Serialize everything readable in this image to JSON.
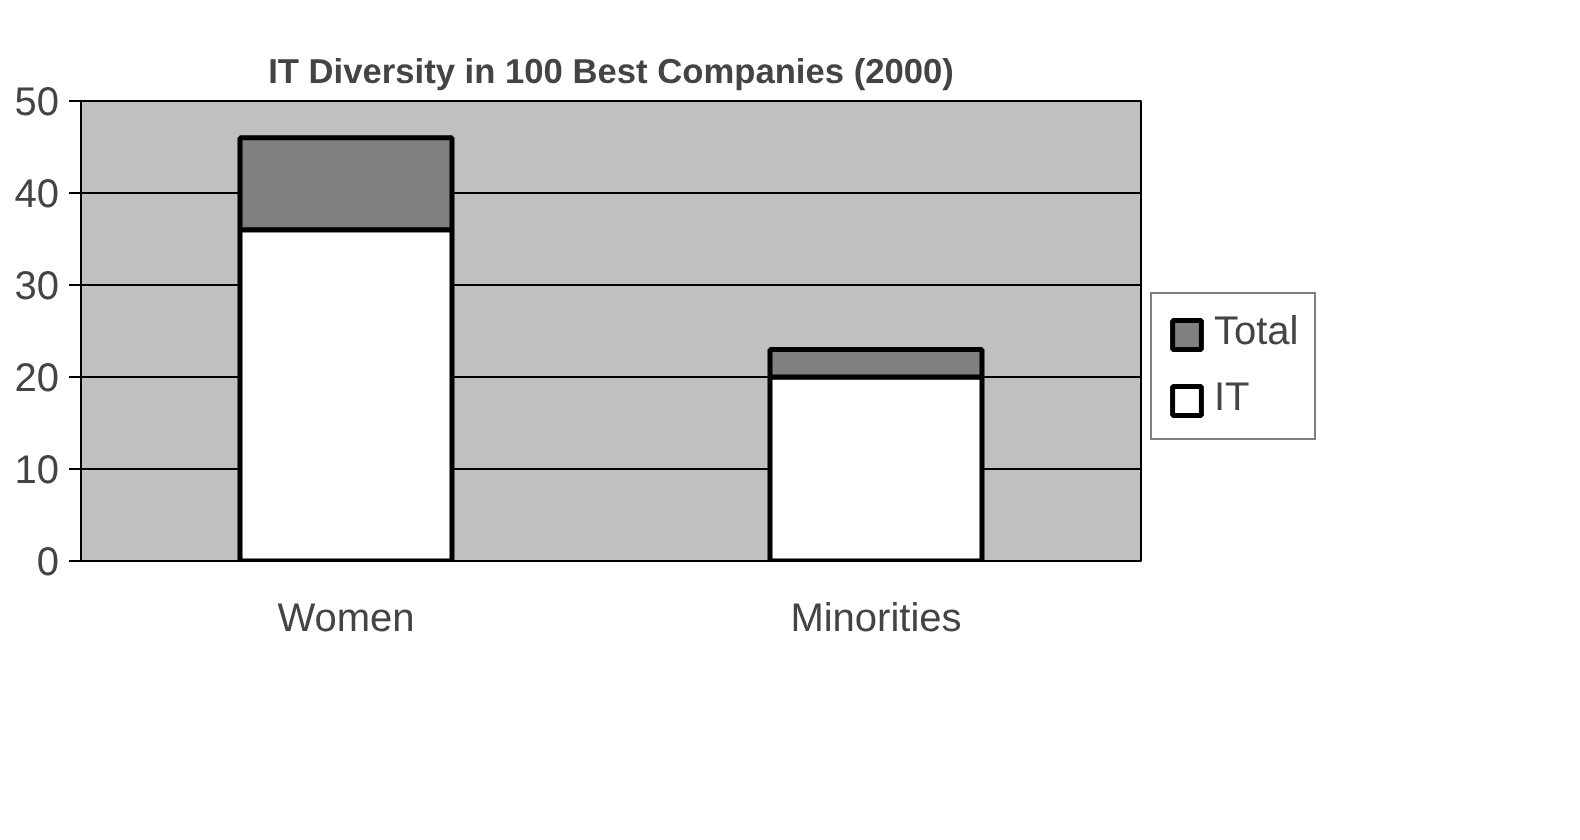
{
  "chart_data": {
    "type": "bar",
    "title": "IT Diversity in 100 Best Companies (2000)",
    "categories": [
      "Women",
      "Minorities"
    ],
    "stacked": true,
    "series": [
      {
        "name": "IT",
        "color": "#ffffff",
        "values": [
          36,
          20
        ]
      },
      {
        "name": "Total",
        "color": "#808080",
        "values": [
          10,
          3
        ]
      }
    ],
    "ylim": [
      0,
      50
    ],
    "yticks": [
      0,
      10,
      20,
      30,
      40,
      50
    ],
    "grid": "y",
    "legend": "right"
  }
}
